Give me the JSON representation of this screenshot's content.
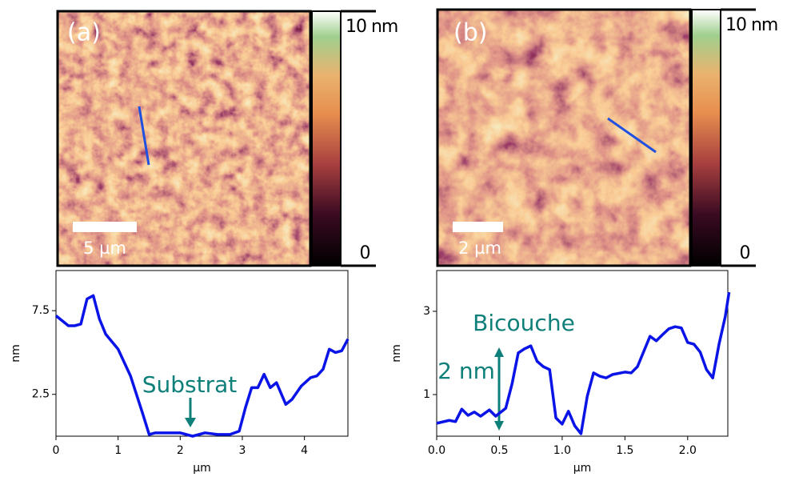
{
  "chart_data": [
    {
      "type": "line",
      "panel_label": "(a)",
      "scale_bar": "5 µm",
      "colorbar_ticks": [
        0,
        {
          "value": 10,
          "label": "10 nm"
        }
      ],
      "clim": [
        0,
        10
      ],
      "x_label": "µm",
      "y_label": "nm",
      "color": "#0a14e6",
      "x": [
        0,
        0.2,
        0.3,
        0.4,
        0.5,
        0.6,
        0.7,
        0.8,
        1.0,
        1.2,
        1.4,
        1.5,
        1.6,
        1.8,
        2.0,
        2.2,
        2.4,
        2.6,
        2.8,
        2.95,
        3.05,
        3.15,
        3.25,
        3.35,
        3.45,
        3.55,
        3.7,
        3.8,
        3.95,
        4.1,
        4.2,
        4.3,
        4.4,
        4.5,
        4.6,
        4.7
      ],
      "values": [
        7.2,
        6.6,
        6.6,
        6.7,
        8.2,
        8.4,
        7.0,
        6.1,
        5.2,
        3.6,
        1.3,
        0.1,
        0.2,
        0.2,
        0.2,
        0,
        0.2,
        0.1,
        0.1,
        0.3,
        1.7,
        2.9,
        2.9,
        3.7,
        2.9,
        3.2,
        1.9,
        2.2,
        3.0,
        3.5,
        3.6,
        4.0,
        5.2,
        5.0,
        5.1,
        5.8
      ],
      "xlim": [
        0,
        4.7
      ],
      "xticks": [
        0,
        1,
        2,
        3,
        4
      ],
      "ylim": [
        0,
        9.9
      ],
      "yticks": [
        2.5,
        7.5
      ],
      "annotations": [
        "Substrat"
      ]
    },
    {
      "type": "line",
      "panel_label": "(b)",
      "scale_bar": "2 µm",
      "colorbar_ticks": [
        0,
        {
          "value": 10,
          "label": "10 nm"
        }
      ],
      "clim": [
        0,
        10
      ],
      "x_label": "µm",
      "y_label": "nm",
      "color": "#0a14e6",
      "x": [
        0,
        0.1,
        0.15,
        0.2,
        0.25,
        0.3,
        0.35,
        0.42,
        0.47,
        0.55,
        0.6,
        0.65,
        0.7,
        0.75,
        0.8,
        0.85,
        0.9,
        0.95,
        1.0,
        1.05,
        1.1,
        1.15,
        1.2,
        1.25,
        1.3,
        1.35,
        1.4,
        1.5,
        1.55,
        1.6,
        1.7,
        1.75,
        1.8,
        1.85,
        1.9,
        1.95,
        2.0,
        2.05,
        2.1,
        2.15,
        2.2,
        2.25,
        2.3,
        2.33
      ],
      "values": [
        0.31,
        0.38,
        0.35,
        0.65,
        0.5,
        0.58,
        0.48,
        0.63,
        0.48,
        0.67,
        1.25,
        2.0,
        2.1,
        2.17,
        1.8,
        1.67,
        1.6,
        0.44,
        0.29,
        0.6,
        0.25,
        0.06,
        0.96,
        1.52,
        1.44,
        1.4,
        1.48,
        1.54,
        1.52,
        1.67,
        2.4,
        2.29,
        2.44,
        2.58,
        2.63,
        2.6,
        2.25,
        2.21,
        2.02,
        1.6,
        1.4,
        2.21,
        2.88,
        3.46
      ],
      "xlim": [
        0,
        2.32
      ],
      "xticks": [
        {
          "value": 0,
          "label": "0.0"
        },
        0.5,
        {
          "value": 1,
          "label": "1.0"
        },
        1.5,
        {
          "value": 2,
          "label": "2.0"
        }
      ],
      "ylim": [
        0,
        3.98
      ],
      "yticks": [
        1,
        3
      ],
      "annotations": [
        "Bicouche",
        "2 nm"
      ]
    }
  ]
}
